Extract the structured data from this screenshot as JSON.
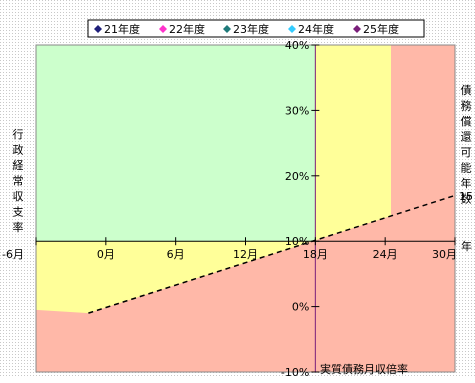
{
  "chart_data": {
    "type": "area",
    "legend": {
      "placement": "top",
      "entries": [
        {
          "name": "21年度",
          "color": "#1f1f7a"
        },
        {
          "name": "22年度",
          "color": "#ff33cc"
        },
        {
          "name": "23年度",
          "color": "#1f7a7a"
        },
        {
          "name": "24年度",
          "color": "#33ccff"
        },
        {
          "name": "25年度",
          "color": "#7a1f7a"
        }
      ]
    },
    "xlabel": "実質債務月収倍率",
    "ylabel_left": "行政経常収支率",
    "ylabel_right": "債務償還可能年数",
    "right_labels": [
      "15",
      "年"
    ],
    "x_ticks": [
      {
        "v": -6,
        "label": "-6月"
      },
      {
        "v": 0,
        "label": "0月"
      },
      {
        "v": 6,
        "label": "6月"
      },
      {
        "v": 12,
        "label": "12月"
      },
      {
        "v": 18,
        "label": "18月"
      },
      {
        "v": 24,
        "label": "24月"
      },
      {
        "v": 30,
        "label": "30月"
      }
    ],
    "y_ticks": [
      {
        "v": 40,
        "label": "40%"
      },
      {
        "v": 30,
        "label": "30%"
      },
      {
        "v": 20,
        "label": "20%"
      },
      {
        "v": 10,
        "label": "10%"
      },
      {
        "v": 0,
        "label": "0%"
      },
      {
        "v": -10,
        "label": "-10%"
      }
    ],
    "xlim": [
      -6,
      30
    ],
    "ylim": [
      -10,
      40
    ],
    "regions": [
      {
        "name": "green",
        "color": "#ccffcc"
      },
      {
        "name": "yellow",
        "color": "#ffff99"
      },
      {
        "name": "pink",
        "color": "#ffb8a8"
      }
    ],
    "dashed_line": {
      "x": [
        -1.5,
        30
      ],
      "y": [
        -1,
        17
      ]
    },
    "yellow_pink_boundary_x": 24.5,
    "yellow_pink_lower_level": -0.5
  }
}
